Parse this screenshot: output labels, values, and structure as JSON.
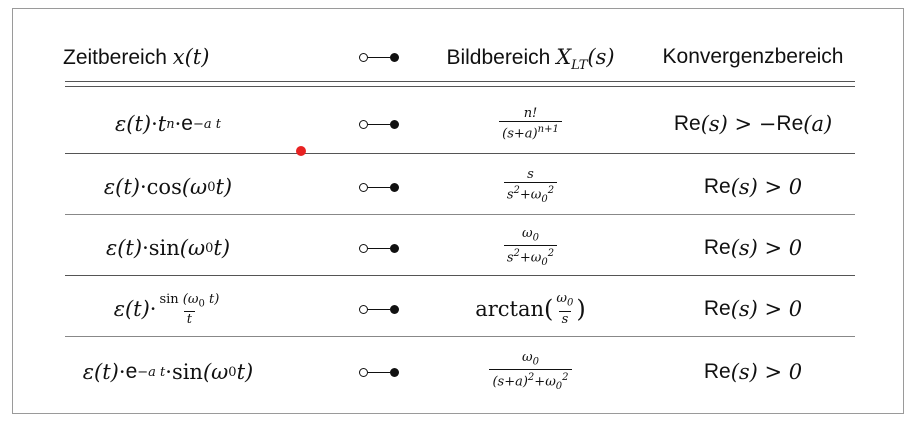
{
  "table": {
    "headers": {
      "time_domain": "Zeitbereich",
      "time_domain_var": "x(t)",
      "image_domain": "Bildbereich",
      "image_domain_var": "X",
      "image_domain_sub": "LT",
      "image_domain_arg": "(s)",
      "convergence": "Konvergenzbereich"
    },
    "rows": [
      {
        "time": {
          "eps": "ε(t)",
          "dot": " · ",
          "t": "t",
          "n": "n",
          "dot2": " · ",
          "e": "e",
          "exp": "−a t"
        },
        "image": {
          "num": "n!",
          "den_base": "(s+a)",
          "den_exp": "n+1"
        },
        "conv": {
          "re1": "Re",
          "arg1": "(s) > −",
          "re2": "Re",
          "arg2": "(a)"
        }
      },
      {
        "time": {
          "eps": "ε(t)",
          "dot": " · ",
          "fn": "cos",
          "arg": " (ω",
          "sub": "0",
          "tail": " t)"
        },
        "image": {
          "num": "s",
          "den": "s",
          "den_exp": "2",
          "den_mid": "+ω",
          "den_sub": "0",
          "den_sup": "2"
        },
        "conv": {
          "re": "Re",
          "arg": "(s) > 0"
        }
      },
      {
        "time": {
          "eps": "ε(t)",
          "dot": " · ",
          "fn": "sin",
          "arg": " (ω",
          "sub": "0",
          "tail": " t)"
        },
        "image": {
          "num": "ω",
          "num_sub": "0",
          "den": "s",
          "den_exp": "2",
          "den_mid": "+ω",
          "den_sub": "0",
          "den_sup": "2"
        },
        "conv": {
          "re": "Re",
          "arg": "(s) > 0"
        }
      },
      {
        "time": {
          "eps": "ε(t)",
          "dot": " · ",
          "num_fn": "sin",
          "num_arg": " (ω",
          "num_sub": "0",
          "num_tail": " t)",
          "den": "t"
        },
        "image": {
          "fn": "arctan",
          "open": " (",
          "num": "ω",
          "num_sub": "0",
          "den": "s",
          "close": ")"
        },
        "conv": {
          "re": "Re",
          "arg": "(s) > 0"
        }
      },
      {
        "time": {
          "eps": "ε(t)",
          "dot": " · ",
          "e": "e",
          "exp": "−a t",
          "dot2": " · ",
          "fn": "sin",
          "arg": " (ω",
          "sub": "0",
          "tail": " t)"
        },
        "image": {
          "num": "ω",
          "num_sub": "0",
          "den_base": "(s+a)",
          "den_exp": "2",
          "den_mid": "+ω",
          "den_sub": "0",
          "den_sup": "2"
        },
        "conv": {
          "re": "Re",
          "arg": "(s) > 0"
        }
      }
    ]
  },
  "colors": {
    "cursor": "#e82222",
    "rule": "#555555",
    "frame": "#9a9a9a"
  }
}
